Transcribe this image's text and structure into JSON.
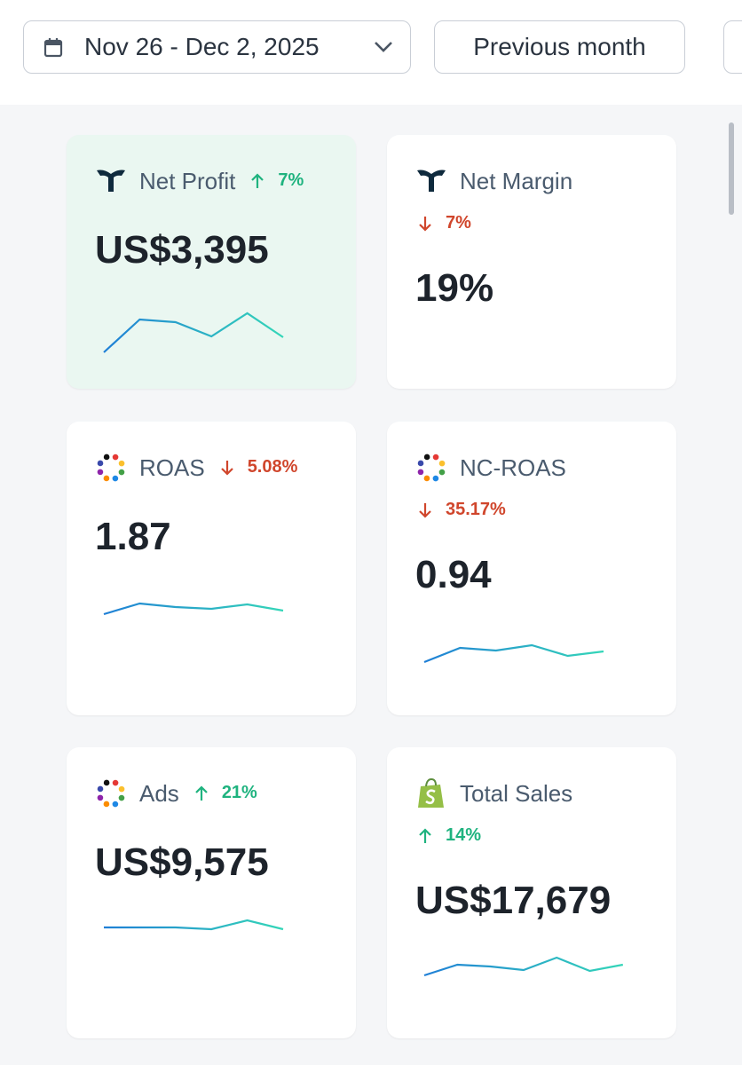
{
  "date_range": "Nov 26 - Dec 2, 2025",
  "previous_button": "Previous month",
  "cards": [
    {
      "title": "Net Profit",
      "direction": "up",
      "change": "7%",
      "value": "US$3,395",
      "sparkline": [
        6,
        80,
        74,
        42,
        94,
        40
      ]
    },
    {
      "title": "Net Margin",
      "direction": "down",
      "change": "7%",
      "value": "19%"
    },
    {
      "title": "ROAS",
      "direction": "down",
      "change": "5.08%",
      "value": "1.87",
      "sparkline": [
        36,
        60,
        52,
        48,
        58,
        44
      ]
    },
    {
      "title": "NC-ROAS",
      "direction": "down",
      "change": "35.17%",
      "value": "0.94",
      "sparkline": [
        28,
        60,
        54,
        66,
        42,
        52
      ]
    },
    {
      "title": "Ads",
      "direction": "up",
      "change": "21%",
      "value": "US$9,575",
      "sparkline": [
        50,
        50,
        50,
        46,
        66,
        46
      ]
    },
    {
      "title": "Total Sales",
      "direction": "up",
      "change": "14%",
      "value": "US$17,679",
      "sparkline": [
        22,
        46,
        42,
        34,
        62,
        32,
        46
      ]
    }
  ]
}
